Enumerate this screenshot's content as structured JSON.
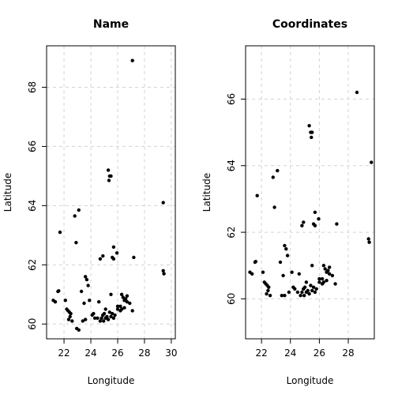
{
  "chart_data": [
    {
      "type": "scatter",
      "title": "Name",
      "xlabel": "Longitude",
      "ylabel": "Latitude",
      "xlim": [
        20.7,
        30.3
      ],
      "ylim": [
        59.5,
        69.4
      ],
      "x_ticks": [
        22,
        24,
        26,
        28,
        30
      ],
      "y_ticks": [
        60,
        62,
        64,
        66,
        68
      ],
      "grid": true,
      "x": [
        27.1,
        25.3,
        25.4,
        25.5,
        25.35,
        29.4,
        21.7,
        23.1,
        22.8,
        22.9,
        25.7,
        25.95,
        25.6,
        25.7,
        24.9,
        24.7,
        27.2,
        21.6,
        21.55,
        22.1,
        23.6,
        23.7,
        23.8,
        21.2,
        21.35,
        23.3,
        23.5,
        22.2,
        22.3,
        22.4,
        22.5,
        22.45,
        22.6,
        22.35,
        22.95,
        23.1,
        24.5,
        24.9,
        24.95,
        25.1,
        25.2,
        25.3,
        24.7,
        24.8,
        24.9,
        25.0,
        25.4,
        25.6,
        25.8,
        26.0,
        26.2,
        26.3,
        26.5,
        26.6,
        26.4,
        26.7,
        26.9,
        27.1,
        25.5,
        26.2,
        26.5,
        26.7,
        23.4,
        23.6,
        23.9,
        24.1,
        24.3,
        24.2,
        25.5,
        25.7,
        26.0,
        26.3,
        24.6,
        25.1,
        29.4,
        29.45
      ],
      "y": [
        68.9,
        65.2,
        65.0,
        65.0,
        64.85,
        64.1,
        63.1,
        63.85,
        63.65,
        62.75,
        62.6,
        62.4,
        62.25,
        62.2,
        62.3,
        62.2,
        62.25,
        61.12,
        61.1,
        60.8,
        61.6,
        61.5,
        61.3,
        60.8,
        60.75,
        61.1,
        60.7,
        60.5,
        60.45,
        60.4,
        60.35,
        60.25,
        60.1,
        60.15,
        59.85,
        59.8,
        60.2,
        60.3,
        60.1,
        60.2,
        60.25,
        60.15,
        60.1,
        60.2,
        60.3,
        60.35,
        60.4,
        60.35,
        60.3,
        60.5,
        60.45,
        60.5,
        60.8,
        60.85,
        60.9,
        60.75,
        60.7,
        60.45,
        61.0,
        60.6,
        60.55,
        60.95,
        60.1,
        60.15,
        60.8,
        60.3,
        60.2,
        60.35,
        60.25,
        60.2,
        60.6,
        61.0,
        60.75,
        60.5,
        61.8,
        61.7
      ],
      "series": [
        {
          "values_from": "x,y"
        }
      ]
    },
    {
      "type": "scatter",
      "title": "Coordinates",
      "xlabel": "Longitude",
      "ylabel": "Latitude",
      "xlim": [
        20.9,
        29.8
      ],
      "ylim": [
        58.8,
        67.6
      ],
      "x_ticks": [
        22,
        24,
        26,
        28
      ],
      "y_ticks": [
        60,
        62,
        64,
        66
      ],
      "grid": true,
      "x": [
        28.6,
        25.3,
        25.4,
        25.5,
        25.45,
        29.6,
        21.7,
        23.1,
        22.8,
        22.9,
        25.7,
        25.95,
        25.6,
        25.7,
        24.9,
        24.8,
        27.2,
        21.6,
        21.55,
        22.1,
        23.6,
        23.7,
        23.8,
        21.2,
        21.35,
        23.3,
        23.5,
        22.2,
        22.3,
        22.4,
        22.5,
        22.45,
        22.6,
        22.35,
        23.4,
        23.6,
        24.5,
        24.9,
        24.95,
        25.1,
        25.2,
        25.3,
        24.7,
        24.8,
        24.9,
        25.0,
        25.4,
        25.6,
        25.8,
        26.0,
        26.2,
        26.3,
        26.5,
        26.6,
        26.4,
        26.7,
        26.9,
        27.1,
        25.5,
        26.2,
        26.5,
        26.7,
        24.1,
        24.3,
        23.9,
        24.2,
        25.5,
        25.7,
        26.0,
        26.3,
        24.6,
        25.1,
        29.4,
        29.45
      ],
      "y": [
        66.2,
        65.2,
        65.0,
        65.0,
        64.85,
        64.1,
        63.1,
        63.85,
        63.65,
        62.75,
        62.6,
        62.4,
        62.25,
        62.2,
        62.3,
        62.2,
        62.25,
        61.12,
        61.1,
        60.8,
        61.6,
        61.5,
        61.3,
        60.8,
        60.75,
        61.1,
        60.7,
        60.5,
        60.45,
        60.4,
        60.35,
        60.25,
        60.1,
        60.15,
        60.1,
        60.1,
        60.2,
        60.3,
        60.1,
        60.2,
        60.25,
        60.15,
        60.1,
        60.2,
        60.3,
        60.35,
        60.4,
        60.35,
        60.3,
        60.5,
        60.45,
        60.5,
        60.8,
        60.85,
        60.9,
        60.75,
        60.7,
        60.45,
        61.0,
        60.6,
        60.55,
        60.95,
        60.8,
        60.3,
        60.2,
        60.35,
        60.25,
        60.2,
        60.6,
        61.0,
        60.75,
        60.5,
        61.8,
        61.7
      ]
    }
  ]
}
